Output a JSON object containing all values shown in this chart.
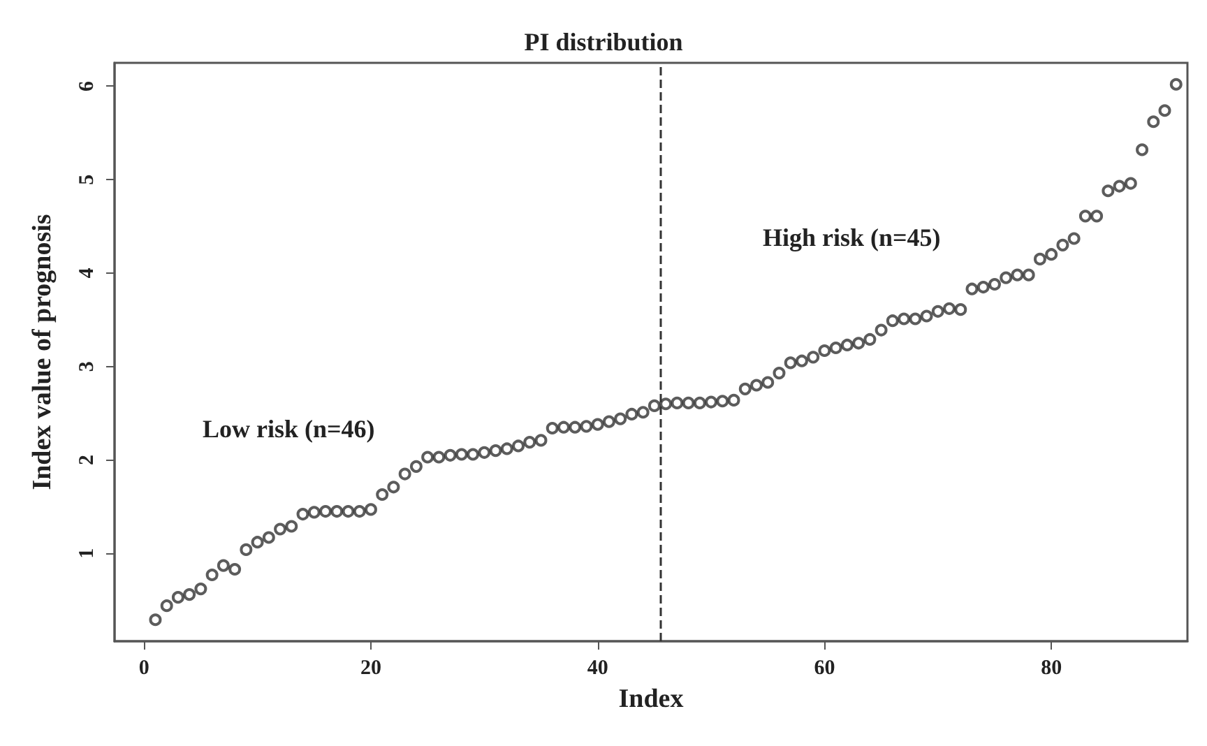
{
  "chart_data": {
    "type": "scatter",
    "title": "PI distribution",
    "xlabel": "Index",
    "ylabel": "Index value of prognosis",
    "x": [
      1,
      2,
      3,
      4,
      5,
      6,
      7,
      8,
      9,
      10,
      11,
      12,
      13,
      14,
      15,
      16,
      17,
      18,
      19,
      20,
      21,
      22,
      23,
      24,
      25,
      26,
      27,
      28,
      29,
      30,
      31,
      32,
      33,
      34,
      35,
      36,
      37,
      38,
      39,
      40,
      41,
      42,
      43,
      44,
      45,
      46,
      47,
      48,
      49,
      50,
      51,
      52,
      53,
      54,
      55,
      56,
      57,
      58,
      59,
      60,
      61,
      62,
      63,
      64,
      65,
      66,
      67,
      68,
      69,
      70,
      71,
      72,
      73,
      74,
      75,
      76,
      77,
      78,
      79,
      80,
      81,
      82,
      83,
      84,
      85,
      86,
      87,
      88,
      89,
      90,
      91
    ],
    "series": [
      {
        "color": "#333333",
        "values": [
          0.29,
          0.44,
          0.53,
          0.56,
          0.62,
          0.77,
          0.87,
          0.83,
          1.04,
          1.12,
          1.17,
          1.26,
          1.29,
          1.42,
          1.44,
          1.45,
          1.45,
          1.45,
          1.45,
          1.47,
          1.63,
          1.71,
          1.85,
          1.93,
          2.03,
          2.03,
          2.05,
          2.06,
          2.06,
          2.08,
          2.1,
          2.12,
          2.15,
          2.19,
          2.21,
          2.34,
          2.35,
          2.35,
          2.36,
          2.38,
          2.41,
          2.44,
          2.49,
          2.51,
          2.58,
          2.6,
          2.61,
          2.61,
          2.61,
          2.62,
          2.63,
          2.64,
          2.76,
          2.8,
          2.83,
          2.93,
          3.04,
          3.06,
          3.1,
          3.17,
          3.2,
          3.23,
          3.25,
          3.29,
          3.39,
          3.49,
          3.51,
          3.51,
          3.54,
          3.59,
          3.62,
          3.61,
          3.83,
          3.85,
          3.88,
          3.95,
          3.98,
          3.98,
          4.15,
          4.2,
          4.3,
          4.37,
          4.61,
          4.61,
          4.88,
          4.93,
          4.96,
          5.32,
          5.62,
          5.74,
          6.02
        ]
      }
    ],
    "xlim": [
      -2.6,
      92
    ],
    "xticks": [
      0,
      20,
      40,
      60,
      80
    ],
    "ylim": [
      0.06,
      6.25
    ],
    "yticks": [
      1,
      2,
      3,
      4,
      5,
      6
    ],
    "ref_lines": [
      {
        "axis": "x",
        "value": 45.5,
        "line_style": "dashed",
        "color": "#333333"
      }
    ],
    "annotations": [
      "Low risk (n=46)",
      "High risk (n=45)"
    ],
    "marker": "circle",
    "grid": false
  }
}
